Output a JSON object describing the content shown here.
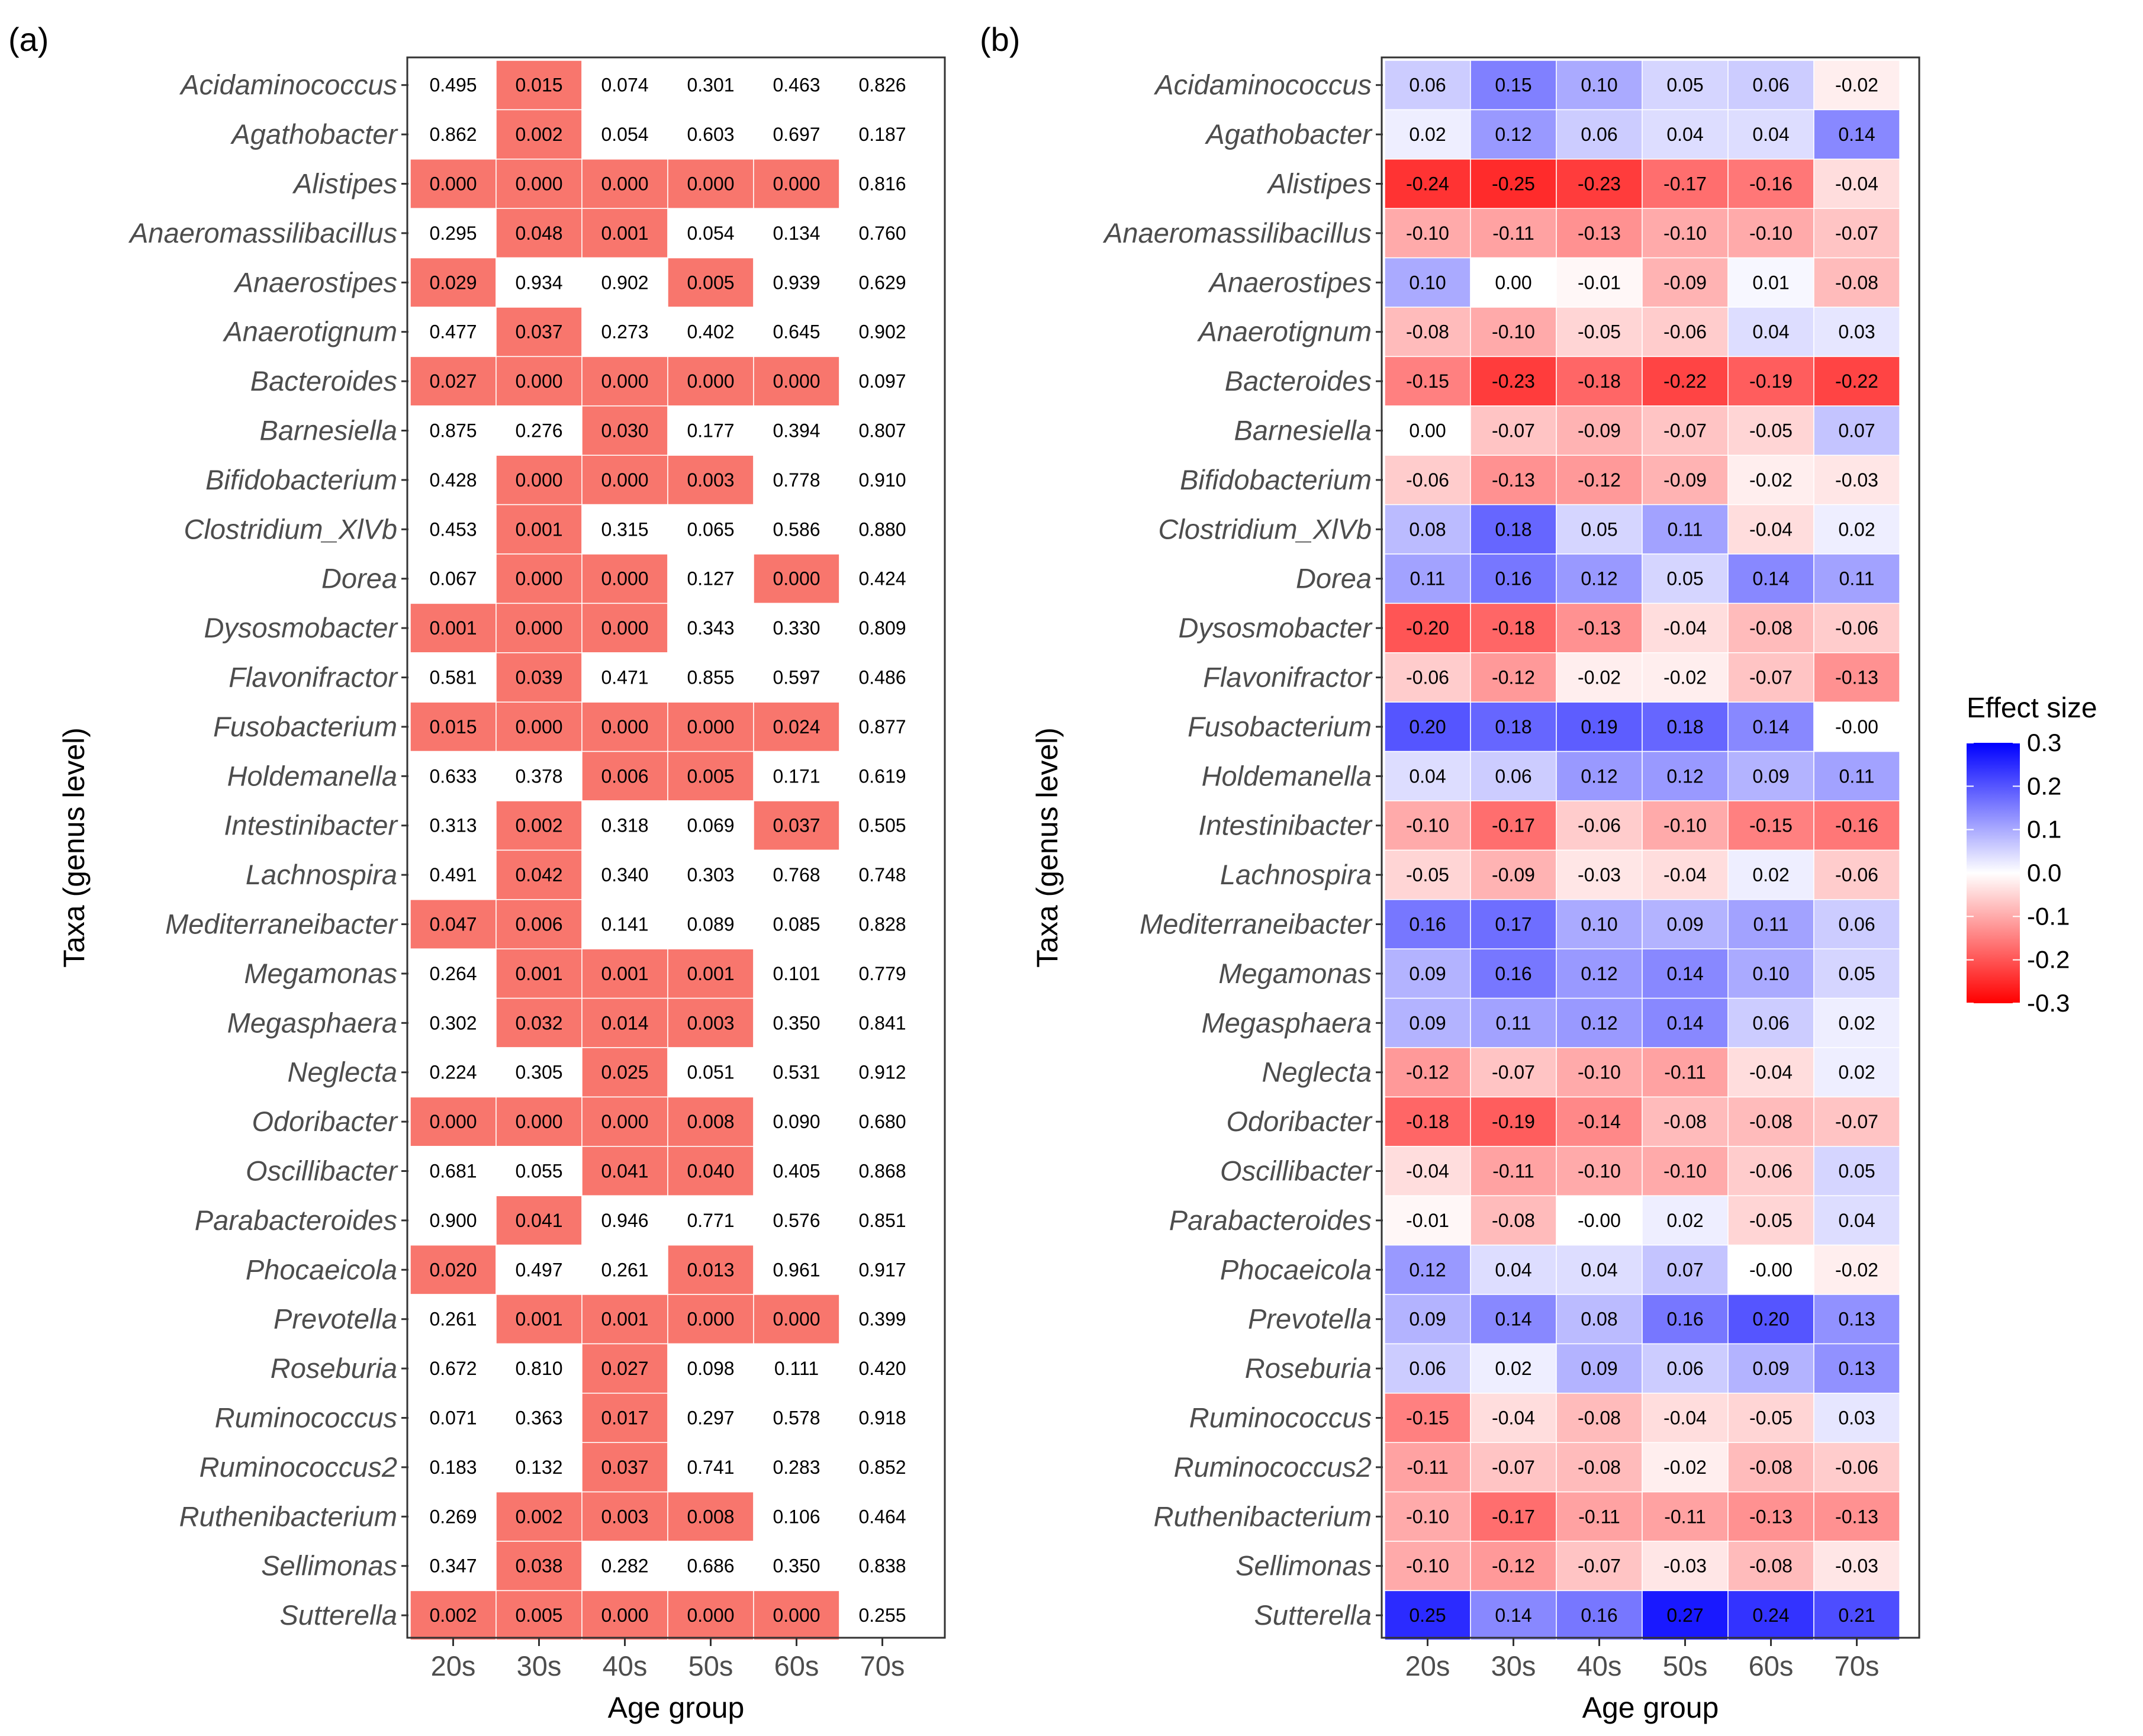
{
  "chart_data": [
    {
      "type": "heatmap",
      "panel_label": "(a)",
      "xlabel": "Age group",
      "ylabel": "Taxa (genus level)",
      "categories": [
        "20s",
        "30s",
        "40s",
        "50s",
        "60s",
        "70s"
      ],
      "taxa": [
        "Acidaminococcus",
        "Agathobacter",
        "Alistipes",
        "Anaeromassilibacillus",
        "Anaerostipes",
        "Anaerotignum",
        "Bacteroides",
        "Barnesiella",
        "Bifidobacterium",
        "Clostridium_XlVb",
        "Dorea",
        "Dysosmobacter",
        "Flavonifractor",
        "Fusobacterium",
        "Holdemanella",
        "Intestinibacter",
        "Lachnospira",
        "Mediterraneibacter",
        "Megamonas",
        "Megasphaera",
        "Neglecta",
        "Odoribacter",
        "Oscillibacter",
        "Parabacteroides",
        "Phocaeicola",
        "Prevotella",
        "Roseburia",
        "Ruminococcus",
        "Ruminococcus2",
        "Ruthenibacterium",
        "Sellimonas",
        "Sutterella"
      ],
      "values": [
        [
          "0.495",
          "0.015",
          "0.074",
          "0.301",
          "0.463",
          "0.826"
        ],
        [
          "0.862",
          "0.002",
          "0.054",
          "0.603",
          "0.697",
          "0.187"
        ],
        [
          "0.000",
          "0.000",
          "0.000",
          "0.000",
          "0.000",
          "0.816"
        ],
        [
          "0.295",
          "0.048",
          "0.001",
          "0.054",
          "0.134",
          "0.760"
        ],
        [
          "0.029",
          "0.934",
          "0.902",
          "0.005",
          "0.939",
          "0.629"
        ],
        [
          "0.477",
          "0.037",
          "0.273",
          "0.402",
          "0.645",
          "0.902"
        ],
        [
          "0.027",
          "0.000",
          "0.000",
          "0.000",
          "0.000",
          "0.097"
        ],
        [
          "0.875",
          "0.276",
          "0.030",
          "0.177",
          "0.394",
          "0.807"
        ],
        [
          "0.428",
          "0.000",
          "0.000",
          "0.003",
          "0.778",
          "0.910"
        ],
        [
          "0.453",
          "0.001",
          "0.315",
          "0.065",
          "0.586",
          "0.880"
        ],
        [
          "0.067",
          "0.000",
          "0.000",
          "0.127",
          "0.000",
          "0.424"
        ],
        [
          "0.001",
          "0.000",
          "0.000",
          "0.343",
          "0.330",
          "0.809"
        ],
        [
          "0.581",
          "0.039",
          "0.471",
          "0.855",
          "0.597",
          "0.486"
        ],
        [
          "0.015",
          "0.000",
          "0.000",
          "0.000",
          "0.024",
          "0.877"
        ],
        [
          "0.633",
          "0.378",
          "0.006",
          "0.005",
          "0.171",
          "0.619"
        ],
        [
          "0.313",
          "0.002",
          "0.318",
          "0.069",
          "0.037",
          "0.505"
        ],
        [
          "0.491",
          "0.042",
          "0.340",
          "0.303",
          "0.768",
          "0.748"
        ],
        [
          "0.047",
          "0.006",
          "0.141",
          "0.089",
          "0.085",
          "0.828"
        ],
        [
          "0.264",
          "0.001",
          "0.001",
          "0.001",
          "0.101",
          "0.779"
        ],
        [
          "0.302",
          "0.032",
          "0.014",
          "0.003",
          "0.350",
          "0.841"
        ],
        [
          "0.224",
          "0.305",
          "0.025",
          "0.051",
          "0.531",
          "0.912"
        ],
        [
          "0.000",
          "0.000",
          "0.000",
          "0.008",
          "0.090",
          "0.680"
        ],
        [
          "0.681",
          "0.055",
          "0.041",
          "0.040",
          "0.405",
          "0.868"
        ],
        [
          "0.900",
          "0.041",
          "0.946",
          "0.771",
          "0.576",
          "0.851"
        ],
        [
          "0.020",
          "0.497",
          "0.261",
          "0.013",
          "0.961",
          "0.917"
        ],
        [
          "0.261",
          "0.001",
          "0.001",
          "0.000",
          "0.000",
          "0.399"
        ],
        [
          "0.672",
          "0.810",
          "0.027",
          "0.098",
          "0.111",
          "0.420"
        ],
        [
          "0.071",
          "0.363",
          "0.017",
          "0.297",
          "0.578",
          "0.918"
        ],
        [
          "0.183",
          "0.132",
          "0.037",
          "0.741",
          "0.283",
          "0.852"
        ],
        [
          "0.269",
          "0.002",
          "0.003",
          "0.008",
          "0.106",
          "0.464"
        ],
        [
          "0.347",
          "0.038",
          "0.282",
          "0.686",
          "0.350",
          "0.838"
        ],
        [
          "0.002",
          "0.005",
          "0.000",
          "0.000",
          "0.000",
          "0.255"
        ]
      ],
      "highlight_threshold": 0.05,
      "highlight_color": "#f8766d"
    },
    {
      "type": "heatmap",
      "panel_label": "(b)",
      "xlabel": "Age group",
      "ylabel": "Taxa (genus level)",
      "categories": [
        "20s",
        "30s",
        "40s",
        "50s",
        "60s",
        "70s"
      ],
      "taxa": [
        "Acidaminococcus",
        "Agathobacter",
        "Alistipes",
        "Anaeromassilibacillus",
        "Anaerostipes",
        "Anaerotignum",
        "Bacteroides",
        "Barnesiella",
        "Bifidobacterium",
        "Clostridium_XlVb",
        "Dorea",
        "Dysosmobacter",
        "Flavonifractor",
        "Fusobacterium",
        "Holdemanella",
        "Intestinibacter",
        "Lachnospira",
        "Mediterraneibacter",
        "Megamonas",
        "Megasphaera",
        "Neglecta",
        "Odoribacter",
        "Oscillibacter",
        "Parabacteroides",
        "Phocaeicola",
        "Prevotella",
        "Roseburia",
        "Ruminococcus",
        "Ruminococcus2",
        "Ruthenibacterium",
        "Sellimonas",
        "Sutterella"
      ],
      "values": [
        [
          "0.06",
          "0.15",
          "0.10",
          "0.05",
          "0.06",
          "-0.02"
        ],
        [
          "0.02",
          "0.12",
          "0.06",
          "0.04",
          "0.04",
          "0.14"
        ],
        [
          "-0.24",
          "-0.25",
          "-0.23",
          "-0.17",
          "-0.16",
          "-0.04"
        ],
        [
          "-0.10",
          "-0.11",
          "-0.13",
          "-0.10",
          "-0.10",
          "-0.07"
        ],
        [
          "0.10",
          "0.00",
          "-0.01",
          "-0.09",
          "0.01",
          "-0.08"
        ],
        [
          "-0.08",
          "-0.10",
          "-0.05",
          "-0.06",
          "0.04",
          "0.03"
        ],
        [
          "-0.15",
          "-0.23",
          "-0.18",
          "-0.22",
          "-0.19",
          "-0.22"
        ],
        [
          "0.00",
          "-0.07",
          "-0.09",
          "-0.07",
          "-0.05",
          "0.07"
        ],
        [
          "-0.06",
          "-0.13",
          "-0.12",
          "-0.09",
          "-0.02",
          "-0.03"
        ],
        [
          "0.08",
          "0.18",
          "0.05",
          "0.11",
          "-0.04",
          "0.02"
        ],
        [
          "0.11",
          "0.16",
          "0.12",
          "0.05",
          "0.14",
          "0.11"
        ],
        [
          "-0.20",
          "-0.18",
          "-0.13",
          "-0.04",
          "-0.08",
          "-0.06"
        ],
        [
          "-0.06",
          "-0.12",
          "-0.02",
          "-0.02",
          "-0.07",
          "-0.13"
        ],
        [
          "0.20",
          "0.18",
          "0.19",
          "0.18",
          "0.14",
          "-0.00"
        ],
        [
          "0.04",
          "0.06",
          "0.12",
          "0.12",
          "0.09",
          "0.11"
        ],
        [
          "-0.10",
          "-0.17",
          "-0.06",
          "-0.10",
          "-0.15",
          "-0.16"
        ],
        [
          "-0.05",
          "-0.09",
          "-0.03",
          "-0.04",
          "0.02",
          "-0.06"
        ],
        [
          "0.16",
          "0.17",
          "0.10",
          "0.09",
          "0.11",
          "0.06"
        ],
        [
          "0.09",
          "0.16",
          "0.12",
          "0.14",
          "0.10",
          "0.05"
        ],
        [
          "0.09",
          "0.11",
          "0.12",
          "0.14",
          "0.06",
          "0.02"
        ],
        [
          "-0.12",
          "-0.07",
          "-0.10",
          "-0.11",
          "-0.04",
          "0.02"
        ],
        [
          "-0.18",
          "-0.19",
          "-0.14",
          "-0.08",
          "-0.08",
          "-0.07"
        ],
        [
          "-0.04",
          "-0.11",
          "-0.10",
          "-0.10",
          "-0.06",
          "0.05"
        ],
        [
          "-0.01",
          "-0.08",
          "-0.00",
          "0.02",
          "-0.05",
          "0.04"
        ],
        [
          "0.12",
          "0.04",
          "0.04",
          "0.07",
          "-0.00",
          "-0.02"
        ],
        [
          "0.09",
          "0.14",
          "0.08",
          "0.16",
          "0.20",
          "0.13"
        ],
        [
          "0.06",
          "0.02",
          "0.09",
          "0.06",
          "0.09",
          "0.13"
        ],
        [
          "-0.15",
          "-0.04",
          "-0.08",
          "-0.04",
          "-0.05",
          "0.03"
        ],
        [
          "-0.11",
          "-0.07",
          "-0.08",
          "-0.02",
          "-0.08",
          "-0.06"
        ],
        [
          "-0.10",
          "-0.17",
          "-0.11",
          "-0.11",
          "-0.13",
          "-0.13"
        ],
        [
          "-0.10",
          "-0.12",
          "-0.07",
          "-0.03",
          "-0.08",
          "-0.03"
        ],
        [
          "0.25",
          "0.14",
          "0.16",
          "0.27",
          "0.24",
          "0.21"
        ]
      ],
      "color_scale": {
        "title": "Effect  size",
        "min": -0.3,
        "max": 0.3,
        "low_color": "#ff0000",
        "mid_color": "#ffffff",
        "high_color": "#0000ff",
        "ticks": [
          "0.3",
          "0.2",
          "0.1",
          "0.0",
          "-0.1",
          "-0.2",
          "-0.3"
        ]
      }
    }
  ]
}
